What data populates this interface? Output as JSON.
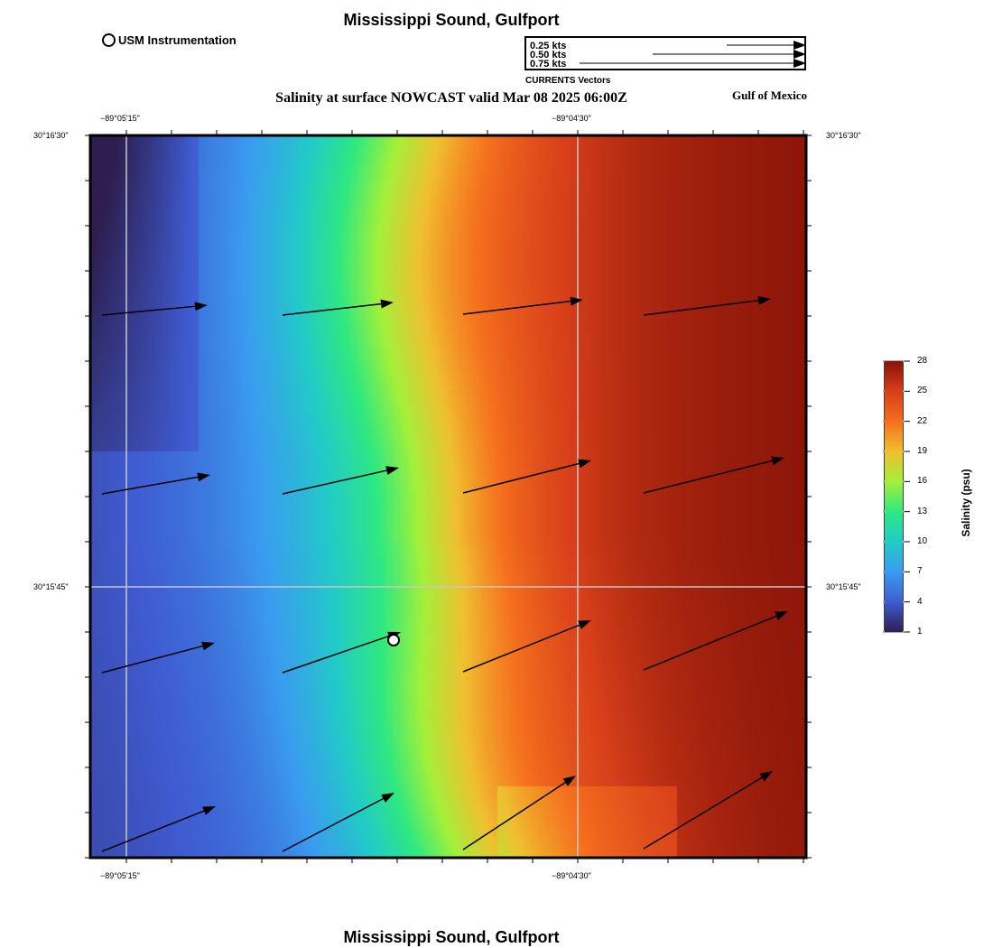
{
  "header": {
    "title": "Mississippi Sound, Gulfport",
    "footer_title": "Mississippi Sound, Gulfport"
  },
  "marker_legend": {
    "label": "USM Instrumentation"
  },
  "vector_legend": {
    "items": [
      "0.25 kts",
      "0.50 kts",
      "0.75 kts"
    ],
    "caption": "CURRENTS Vectors"
  },
  "map": {
    "subtitle": "Salinity at surface NOWCAST valid Mar 08 2025 06:00Z",
    "region_label": "Gulf of Mexico",
    "lon_labels": [
      "−89°05'15\"",
      "−89°04'30\""
    ],
    "lat_labels": [
      "30°16'30\"",
      "30°15'45\""
    ]
  },
  "colorbar": {
    "label": "Salinity (psu)",
    "ticks": [
      "28",
      "25",
      "22",
      "19",
      "16",
      "13",
      "10",
      "7",
      "4",
      "1"
    ],
    "min": 1,
    "max": 28,
    "colors": [
      "#2d1e4f",
      "#3f5bd1",
      "#3a9cf0",
      "#22cbc8",
      "#2ee882",
      "#a2f03a",
      "#f0c030",
      "#f5701e",
      "#d8401a",
      "#8a1408"
    ]
  }
}
